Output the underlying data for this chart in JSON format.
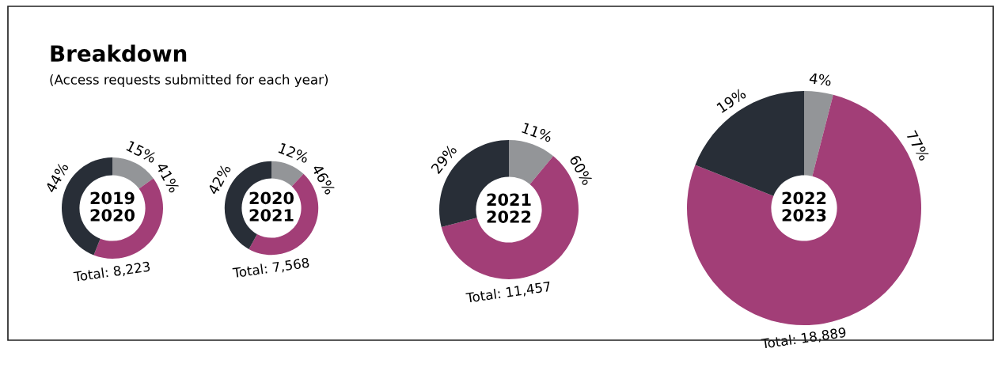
{
  "chart_data": [
    {
      "type": "other",
      "title": "Breakdown",
      "subtitle": "(Access requests submitted for each year)"
    },
    {
      "type": "donut",
      "title": "2019\n2020",
      "categories": [
        null,
        null,
        null
      ],
      "values": [
        15,
        41,
        44
      ],
      "colors": [
        "#939598",
        "#a23e77",
        "#282e37"
      ],
      "value_labels": [
        "15%",
        "41%",
        "44%"
      ],
      "annotations": [
        "Total: 8,223"
      ]
    },
    {
      "type": "donut",
      "title": "2020\n2021",
      "categories": [
        null,
        null,
        null
      ],
      "values": [
        12,
        46,
        42
      ],
      "colors": [
        "#939598",
        "#a23e77",
        "#282e37"
      ],
      "value_labels": [
        "12%",
        "46%",
        "42%"
      ],
      "annotations": [
        "Total: 7,568"
      ]
    },
    {
      "type": "donut",
      "title": "2021\n2022",
      "categories": [
        null,
        null,
        null
      ],
      "values": [
        11,
        60,
        29
      ],
      "colors": [
        "#939598",
        "#a23e77",
        "#282e37"
      ],
      "value_labels": [
        "11%",
        "60%",
        "29%"
      ],
      "annotations": [
        "Total: 11,457"
      ]
    },
    {
      "type": "donut",
      "title": "2022\n2023",
      "categories": [
        null,
        null,
        null
      ],
      "values": [
        4,
        77,
        19
      ],
      "colors": [
        "#939598",
        "#a23e77",
        "#282e37"
      ],
      "value_labels": [
        "4%",
        "77%",
        "19%"
      ],
      "annotations": [
        "Total: 18,889"
      ]
    }
  ]
}
